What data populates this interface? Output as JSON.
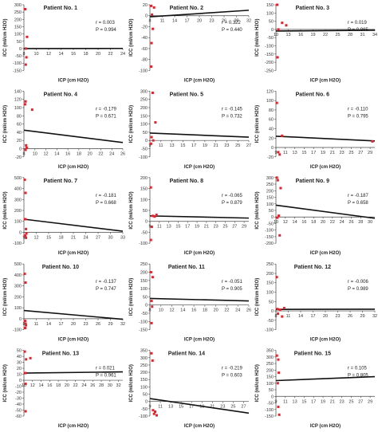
{
  "figure": {
    "xlabel": "ICP (cm H2O)",
    "ylabel": "ICC (ml/cm H2O)"
  },
  "chart_data": [
    {
      "type": "scatter",
      "title": "Patient No. 1",
      "r": "r = 0.003",
      "p": "P = 0.994",
      "xticks": [
        8,
        10,
        12,
        14,
        16,
        18,
        20,
        22,
        24
      ],
      "xlim": [
        8,
        24
      ],
      "yticks": [
        -150,
        -100,
        -50,
        0,
        50,
        100,
        150,
        200,
        250,
        300
      ],
      "ylim": [
        -150,
        300
      ],
      "points": [
        [
          8.2,
          270
        ],
        [
          8.5,
          80
        ],
        [
          8.3,
          0
        ],
        [
          8.4,
          -60
        ],
        [
          8.3,
          -110
        ]
      ],
      "fit": [
        [
          8,
          0
        ],
        [
          24,
          1
        ]
      ],
      "color": "#e8212a"
    },
    {
      "type": "scatter",
      "title": "Patient No. 2",
      "r": "r = 0.322",
      "p": "P = 0.440",
      "xticks": [
        8,
        11,
        14,
        17,
        20,
        23,
        26,
        29,
        32
      ],
      "xlim": [
        8,
        32
      ],
      "yticks": [
        -100,
        -80,
        -60,
        -40,
        -20,
        0,
        20
      ],
      "ylim": [
        -100,
        20
      ],
      "points": [
        [
          8.3,
          18
        ],
        [
          9,
          15
        ],
        [
          8.5,
          2
        ],
        [
          8.7,
          -24
        ],
        [
          8.4,
          -50
        ],
        [
          8.3,
          -93
        ]
      ],
      "fit": [
        [
          8,
          -2
        ],
        [
          32,
          10
        ]
      ],
      "color": "#e8212a"
    },
    {
      "type": "scatter",
      "title": "Patient No. 3",
      "r": "r = 0.019",
      "p": "P = 0.965",
      "xticks": [
        10,
        13,
        16,
        19,
        22,
        25,
        28,
        31,
        34
      ],
      "xlim": [
        10,
        34
      ],
      "yticks": [
        -250,
        -200,
        -150,
        -100,
        -50,
        0,
        50,
        100,
        150
      ],
      "ylim": [
        -250,
        150
      ],
      "points": [
        [
          10.3,
          150
        ],
        [
          11.5,
          40
        ],
        [
          12.5,
          25
        ],
        [
          10.6,
          0
        ],
        [
          10.4,
          -170
        ]
      ],
      "fit": [
        [
          10,
          -10
        ],
        [
          34,
          -5
        ]
      ],
      "color": "#e8212a"
    },
    {
      "type": "scatter",
      "title": "Patient No. 4",
      "r": "r = -0.179",
      "p": "P = 0.671",
      "xticks": [
        8,
        10,
        12,
        14,
        16,
        18,
        20,
        22,
        24,
        26
      ],
      "xlim": [
        8,
        26
      ],
      "yticks": [
        -20,
        0,
        20,
        40,
        60,
        80,
        100,
        120,
        140
      ],
      "ylim": [
        -20,
        140
      ],
      "points": [
        [
          8.3,
          115
        ],
        [
          8.2,
          108
        ],
        [
          9.5,
          95
        ],
        [
          8.4,
          8
        ],
        [
          8.5,
          2
        ],
        [
          8.3,
          -3
        ]
      ],
      "fit": [
        [
          8,
          45
        ],
        [
          26,
          15
        ]
      ],
      "color": "#e8212a"
    },
    {
      "type": "scatter",
      "title": "Patient No. 5",
      "r": "r = -0.145",
      "p": "P = 0.732",
      "xticks": [
        9,
        11,
        13,
        15,
        17,
        19,
        21,
        23,
        25,
        27
      ],
      "xlim": [
        9,
        27
      ],
      "yticks": [
        -100,
        -50,
        0,
        50,
        100,
        150,
        200,
        250,
        300
      ],
      "ylim": [
        -100,
        300
      ],
      "points": [
        [
          9.5,
          290
        ],
        [
          10,
          110
        ],
        [
          9.3,
          20
        ],
        [
          9.6,
          0
        ],
        [
          9.2,
          -20
        ]
      ],
      "fit": [
        [
          9,
          45
        ],
        [
          27,
          20
        ]
      ],
      "color": "#e8212a"
    },
    {
      "type": "scatter",
      "title": "Patient No. 6",
      "r": "r = -0.110",
      "p": "P = 0.795",
      "xticks": [
        9,
        11,
        13,
        15,
        17,
        19,
        21,
        23,
        25,
        27,
        29
      ],
      "xlim": [
        9,
        30
      ],
      "yticks": [
        -20,
        0,
        20,
        40,
        60,
        80,
        100,
        120
      ],
      "ylim": [
        -20,
        120
      ],
      "points": [
        [
          9.2,
          95
        ],
        [
          10.3,
          25
        ],
        [
          9.5,
          -10
        ],
        [
          9.8,
          -15
        ],
        [
          29.5,
          13
        ]
      ],
      "fit": [
        [
          9,
          24
        ],
        [
          30,
          14
        ]
      ],
      "color": "#e8212a"
    },
    {
      "type": "scatter",
      "title": "Patient No. 7",
      "r": "r = -0.181",
      "p": "P = 0.668",
      "xticks": [
        9,
        12,
        15,
        18,
        21,
        24,
        27,
        30,
        33
      ],
      "xlim": [
        9,
        33
      ],
      "yticks": [
        -100,
        0,
        100,
        200,
        300,
        400,
        500
      ],
      "ylim": [
        -100,
        500
      ],
      "points": [
        [
          9.2,
          480
        ],
        [
          9.4,
          360
        ],
        [
          9.3,
          120
        ],
        [
          9.5,
          30
        ],
        [
          9.6,
          -10
        ],
        [
          9.3,
          -30
        ],
        [
          9.5,
          -50
        ]
      ],
      "fit": [
        [
          9,
          120
        ],
        [
          33,
          10
        ]
      ],
      "color": "#e8212a"
    },
    {
      "type": "scatter",
      "title": "Patient No. 8",
      "r": "r = -0.065",
      "p": "P = 0.879",
      "xticks": [
        9,
        11,
        13,
        15,
        17,
        19,
        21,
        23,
        25,
        27,
        29
      ],
      "xlim": [
        9,
        30
      ],
      "yticks": [
        -100,
        -50,
        0,
        50,
        100,
        150,
        200
      ],
      "ylim": [
        -100,
        200
      ],
      "points": [
        [
          9.2,
          155
        ],
        [
          9.6,
          25
        ],
        [
          10.4,
          30
        ],
        [
          10,
          22
        ],
        [
          9.4,
          -25
        ],
        [
          9.2,
          -85
        ]
      ],
      "fit": [
        [
          9,
          25
        ],
        [
          30,
          15
        ]
      ],
      "color": "#e8212a"
    },
    {
      "type": "scatter",
      "title": "Patient No. 9",
      "r": "r = -0.187",
      "p": "P = 0.658",
      "xticks": [
        10,
        12,
        14,
        16,
        18,
        20,
        22,
        24,
        26,
        28,
        30
      ],
      "xlim": [
        10,
        31
      ],
      "yticks": [
        -200,
        -150,
        -100,
        -50,
        0,
        50,
        100,
        150,
        200,
        250,
        300
      ],
      "ylim": [
        -200,
        300
      ],
      "points": [
        [
          10.2,
          300
        ],
        [
          10.4,
          280
        ],
        [
          11,
          220
        ],
        [
          10.6,
          10
        ],
        [
          10.3,
          -5
        ],
        [
          10.8,
          -140
        ]
      ],
      "fit": [
        [
          10,
          90
        ],
        [
          31,
          -10
        ]
      ],
      "color": "#e8212a"
    },
    {
      "type": "scatter",
      "title": "Patient No. 10",
      "r": "r = -0.137",
      "p": "P = 0.747",
      "xticks": [
        8,
        11,
        14,
        17,
        20,
        23,
        26,
        29,
        32
      ],
      "xlim": [
        8,
        32
      ],
      "yticks": [
        -100,
        0,
        100,
        200,
        300,
        400,
        500
      ],
      "ylim": [
        -100,
        500
      ],
      "points": [
        [
          8.2,
          410
        ],
        [
          8.4,
          330
        ],
        [
          8.3,
          -20
        ],
        [
          8.4,
          -45
        ],
        [
          8.5,
          -60
        ],
        [
          8.3,
          -85
        ]
      ],
      "fit": [
        [
          8,
          75
        ],
        [
          32,
          -5
        ]
      ],
      "color": "#e8212a"
    },
    {
      "type": "scatter",
      "title": "Patient No. 11",
      "r": "r = -0.051",
      "p": "P = 0.905",
      "xticks": [
        8,
        10,
        12,
        14,
        16,
        18,
        20,
        22,
        24,
        26
      ],
      "xlim": [
        8,
        26
      ],
      "yticks": [
        -150,
        -100,
        -50,
        0,
        50,
        100,
        150,
        200,
        250
      ],
      "ylim": [
        -150,
        250
      ],
      "points": [
        [
          8.2,
          200
        ],
        [
          8.5,
          170
        ],
        [
          8.3,
          25
        ],
        [
          8.4,
          -10
        ],
        [
          8.3,
          -110
        ]
      ],
      "fit": [
        [
          8,
          40
        ],
        [
          26,
          25
        ]
      ],
      "color": "#e8212a"
    },
    {
      "type": "scatter",
      "title": "Patient No. 12",
      "r": "r = -0.006",
      "p": "P = 0.989",
      "xticks": [
        8,
        11,
        14,
        17,
        20,
        23,
        26,
        29,
        32
      ],
      "xlim": [
        8,
        32
      ],
      "yticks": [
        -100,
        -50,
        0,
        50,
        100,
        150,
        200,
        250
      ],
      "ylim": [
        -100,
        250
      ],
      "points": [
        [
          8.2,
          180
        ],
        [
          8.4,
          10
        ],
        [
          9,
          6
        ],
        [
          10,
          15
        ],
        [
          8.5,
          -15
        ],
        [
          9.5,
          -30
        ]
      ],
      "fit": [
        [
          8,
          8
        ],
        [
          32,
          9
        ]
      ],
      "color": "#e8212a"
    },
    {
      "type": "scatter",
      "title": "Patient No. 13",
      "r": "r = 0.021",
      "p": "P = 0.961",
      "xticks": [
        10,
        12,
        14,
        16,
        18,
        20,
        22,
        24,
        26,
        28,
        30,
        32
      ],
      "xlim": [
        10,
        33
      ],
      "yticks": [
        -60,
        -50,
        -40,
        -30,
        -20,
        -10,
        0,
        10,
        20,
        30,
        40,
        50
      ],
      "ylim": [
        -60,
        50
      ],
      "points": [
        [
          10.2,
          48
        ],
        [
          10.5,
          35
        ],
        [
          11.5,
          37
        ],
        [
          10.3,
          12
        ],
        [
          10.4,
          -6
        ],
        [
          10.4,
          -52
        ]
      ],
      "fit": [
        [
          10,
          12
        ],
        [
          33,
          14
        ]
      ],
      "color": "#e8212a"
    },
    {
      "type": "scatter",
      "title": "Patient No. 14",
      "r": "r = -0.219",
      "p": "P = 0.603",
      "xticks": [
        9,
        11,
        13,
        15,
        17,
        19,
        21,
        23,
        25,
        27
      ],
      "xlim": [
        9,
        28
      ],
      "yticks": [
        -100,
        -50,
        0,
        50,
        100,
        150,
        200,
        250,
        300,
        350
      ],
      "ylim": [
        -100,
        350
      ],
      "points": [
        [
          9.3,
          330
        ],
        [
          9.5,
          280
        ],
        [
          9.6,
          -60
        ],
        [
          9.8,
          -85
        ],
        [
          10.3,
          -95
        ],
        [
          10,
          -70
        ]
      ],
      "fit": [
        [
          9,
          20
        ],
        [
          28,
          -80
        ]
      ],
      "color": "#e8212a"
    },
    {
      "type": "scatter",
      "title": "Patient No. 15",
      "r": "r = 0.105",
      "p": "P = 0.805",
      "xticks": [
        9,
        11,
        13,
        15,
        17,
        19,
        21,
        23,
        25,
        27,
        29
      ],
      "xlim": [
        9,
        30
      ],
      "yticks": [
        -150,
        -100,
        -50,
        0,
        50,
        100,
        150,
        200,
        250,
        300,
        350
      ],
      "ylim": [
        -150,
        350
      ],
      "points": [
        [
          9.2,
          310
        ],
        [
          9.5,
          280
        ],
        [
          9.6,
          180
        ],
        [
          9.4,
          100
        ],
        [
          9.5,
          -80
        ],
        [
          9.7,
          -140
        ]
      ],
      "fit": [
        [
          9,
          120
        ],
        [
          30,
          150
        ]
      ],
      "color": "#e8212a"
    }
  ]
}
